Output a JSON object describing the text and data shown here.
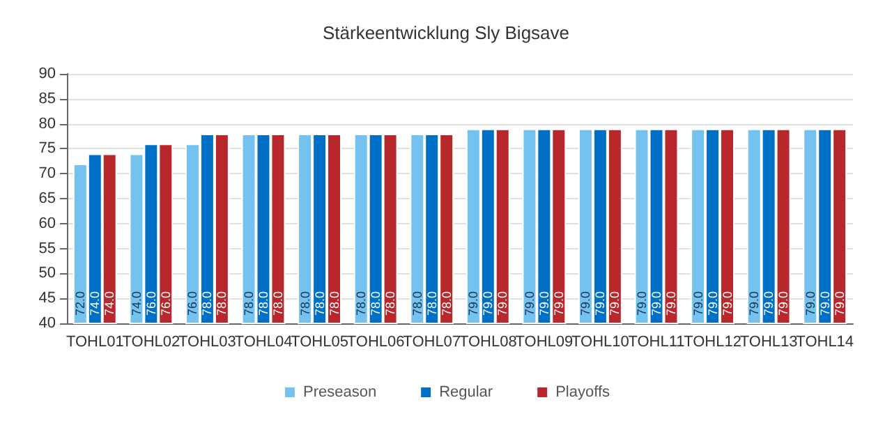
{
  "chart_data": {
    "type": "bar",
    "title": "Stärkeentwicklung Sly Bigsave",
    "categories": [
      "TOHL01",
      "TOHL02",
      "TOHL03",
      "TOHL04",
      "TOHL05",
      "TOHL06",
      "TOHL07",
      "TOHL08",
      "TOHL09",
      "TOHL10",
      "TOHL11",
      "TOHL12",
      "TOHL13",
      "TOHL14"
    ],
    "series": [
      {
        "name": "Preseason",
        "color": "#74c2ef",
        "values": [
          72,
          74,
          76,
          78,
          78,
          78,
          78,
          79,
          79,
          79,
          79,
          79,
          79,
          79
        ],
        "value_labels": [
          "72.0",
          "74.0",
          "76.0",
          "78.0",
          "78.0",
          "78.0",
          "78.0",
          "79.0",
          "79.0",
          "79.0",
          "79.0",
          "79.0",
          "79.0",
          "79.0"
        ]
      },
      {
        "name": "Regular",
        "color": "#0070c6",
        "values": [
          74,
          76,
          78,
          78,
          78,
          78,
          78,
          79,
          79,
          79,
          79,
          79,
          79,
          79
        ],
        "value_labels": [
          "74.0",
          "76.0",
          "78.0",
          "78.0",
          "78.0",
          "78.0",
          "78.0",
          "79.0",
          "79.0",
          "79.0",
          "79.0",
          "79.0",
          "79.0",
          "79.0"
        ]
      },
      {
        "name": "Playoffs",
        "color": "#b8272b",
        "values": [
          74,
          76,
          78,
          78,
          78,
          78,
          78,
          79,
          79,
          79,
          79,
          79,
          79,
          79
        ],
        "value_labels": [
          "74.0",
          "76.0",
          "78.0",
          "78.0",
          "78.0",
          "78.0",
          "78.0",
          "79.0",
          "79.0",
          "79.0",
          "79.0",
          "79.0",
          "79.0",
          "79.0"
        ]
      }
    ],
    "ylim": [
      40,
      90
    ],
    "yticks": [
      40,
      45,
      50,
      55,
      60,
      65,
      70,
      75,
      80,
      85,
      90
    ],
    "grid": "y",
    "legend": "bottom"
  }
}
